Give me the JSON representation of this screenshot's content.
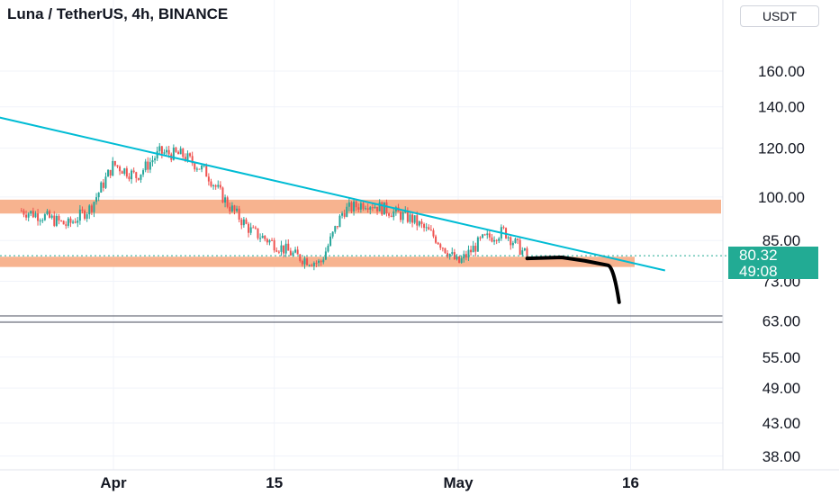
{
  "header": {
    "title": "Luna / TetherUS, 4h, BINANCE",
    "currency": "USDT"
  },
  "price_label": {
    "price": "80.32",
    "countdown": "49:08"
  },
  "colors": {
    "up": "#26a69a",
    "down": "#ef5350",
    "zone": "#f7b38f",
    "trendline": "#00bcd4",
    "drawing": "#000000",
    "price_tag": "#22ab94"
  },
  "chart_data": {
    "type": "candlestick",
    "title": "Luna / TetherUS, 4h, BINANCE",
    "y_scale": "log",
    "ylim": [
      35,
      185
    ],
    "y_ticks": [
      "160.00",
      "140.00",
      "120.00",
      "100.00",
      "85.00",
      "73.00",
      "63.00",
      "55.00",
      "49.00",
      "43.00",
      "38.00"
    ],
    "x_ticks": [
      "Apr",
      "15",
      "May",
      "16"
    ],
    "candle_path": [
      [
        "Mar 24",
        95
      ],
      [
        "Mar 26",
        93
      ],
      [
        "Mar 28",
        90
      ],
      [
        "Mar 30",
        96
      ],
      [
        "Apr 1",
        113
      ],
      [
        "Apr 3",
        108
      ],
      [
        "Apr 5",
        118
      ],
      [
        "Apr 7",
        117
      ],
      [
        "Apr 9",
        110
      ],
      [
        "Apr 11",
        97
      ],
      [
        "Apr 13",
        88
      ],
      [
        "Apr 15",
        84
      ],
      [
        "Apr 17",
        80
      ],
      [
        "Apr 19",
        78
      ],
      [
        "Apr 21",
        95
      ],
      [
        "Apr 23",
        98
      ],
      [
        "Apr 25",
        95
      ],
      [
        "Apr 27",
        92
      ],
      [
        "Apr 29",
        86
      ],
      [
        "May 1",
        78
      ],
      [
        "May 3",
        85
      ],
      [
        "May 5",
        88
      ],
      [
        "May 7",
        80
      ]
    ],
    "resistance_zone": [
      94,
      99
    ],
    "support_zone": [
      77,
      80
    ],
    "trendline": [
      [
        "Mar 21",
        136
      ],
      [
        "May 19",
        76
      ]
    ],
    "projection": [
      [
        "May 7",
        79.5
      ],
      [
        "May 10",
        79.8
      ],
      [
        "May 12",
        78.8
      ],
      [
        "May 14",
        77.5
      ],
      [
        "May 15",
        67.5
      ]
    ],
    "horizontal_line": 63.5,
    "current_price": 80.32
  }
}
